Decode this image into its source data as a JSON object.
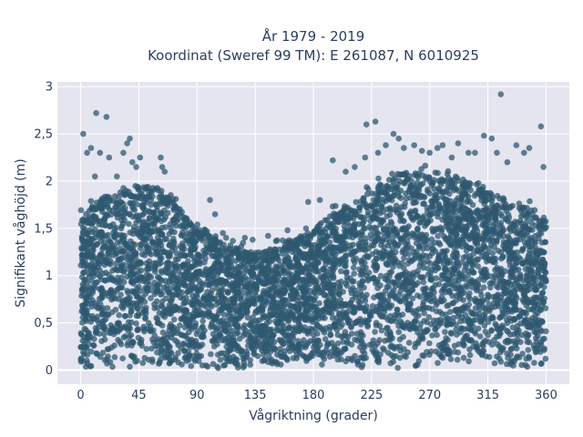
{
  "chart_data": {
    "type": "scatter",
    "title_line1": "År 1979 - 2019",
    "title_line2": "Koordinat (Sweref 99 TM): E 261087, N 6010925",
    "xlabel": "Vågriktning (grader)",
    "ylabel": "Signifikant våghöjd (m)",
    "xlim": [
      -18,
      378
    ],
    "ylim": [
      -0.15,
      3.05
    ],
    "x_ticks": [
      0,
      45,
      90,
      135,
      180,
      225,
      270,
      315,
      360
    ],
    "x_tick_labels": [
      "0",
      "45",
      "90",
      "135",
      "180",
      "225",
      "270",
      "315",
      "360"
    ],
    "y_ticks": [
      0,
      0.5,
      1,
      1.5,
      2,
      2.5,
      3
    ],
    "y_tick_labels": [
      "0",
      "0,5",
      "1",
      "1,5",
      "2",
      "2,5",
      "3"
    ],
    "grid": true,
    "colors": {
      "plot_bg": "#e5e5f0",
      "grid": "#ffffff",
      "marker": "#2e5870"
    },
    "envelope": [
      [
        0,
        1.6
      ],
      [
        10,
        1.75
      ],
      [
        20,
        1.85
      ],
      [
        30,
        1.9
      ],
      [
        40,
        1.95
      ],
      [
        50,
        1.95
      ],
      [
        60,
        1.95
      ],
      [
        70,
        1.85
      ],
      [
        80,
        1.65
      ],
      [
        90,
        1.55
      ],
      [
        100,
        1.45
      ],
      [
        110,
        1.35
      ],
      [
        120,
        1.3
      ],
      [
        130,
        1.25
      ],
      [
        140,
        1.25
      ],
      [
        150,
        1.3
      ],
      [
        160,
        1.35
      ],
      [
        170,
        1.4
      ],
      [
        180,
        1.5
      ],
      [
        190,
        1.6
      ],
      [
        200,
        1.7
      ],
      [
        210,
        1.8
      ],
      [
        220,
        1.9
      ],
      [
        230,
        1.95
      ],
      [
        240,
        2.05
      ],
      [
        250,
        2.1
      ],
      [
        260,
        2.1
      ],
      [
        270,
        2.1
      ],
      [
        280,
        2.1
      ],
      [
        290,
        2.05
      ],
      [
        300,
        2.0
      ],
      [
        310,
        1.95
      ],
      [
        320,
        1.9
      ],
      [
        330,
        1.8
      ],
      [
        340,
        1.75
      ],
      [
        350,
        1.7
      ],
      [
        360,
        1.65
      ]
    ],
    "outliers": [
      [
        2,
        2.5
      ],
      [
        5,
        2.3
      ],
      [
        8,
        2.35
      ],
      [
        11,
        2.05
      ],
      [
        12,
        2.72
      ],
      [
        15,
        2.3
      ],
      [
        20,
        2.68
      ],
      [
        22,
        2.25
      ],
      [
        28,
        2.05
      ],
      [
        33,
        2.3
      ],
      [
        36,
        2.4
      ],
      [
        38,
        2.45
      ],
      [
        40,
        2.2
      ],
      [
        43,
        2.15
      ],
      [
        46,
        2.25
      ],
      [
        62,
        2.25
      ],
      [
        63,
        2.15
      ],
      [
        65,
        2.1
      ],
      [
        100,
        1.8
      ],
      [
        104,
        1.65
      ],
      [
        110,
        1.45
      ],
      [
        127,
        1.4
      ],
      [
        133,
        1.38
      ],
      [
        145,
        1.42
      ],
      [
        160,
        1.48
      ],
      [
        176,
        1.78
      ],
      [
        185,
        1.8
      ],
      [
        195,
        2.22
      ],
      [
        205,
        2.1
      ],
      [
        212,
        2.15
      ],
      [
        220,
        2.25
      ],
      [
        221,
        2.6
      ],
      [
        228,
        2.63
      ],
      [
        230,
        2.3
      ],
      [
        236,
        2.38
      ],
      [
        242,
        2.5
      ],
      [
        246,
        2.45
      ],
      [
        250,
        2.35
      ],
      [
        258,
        2.38
      ],
      [
        264,
        2.32
      ],
      [
        270,
        2.3
      ],
      [
        276,
        2.35
      ],
      [
        280,
        2.38
      ],
      [
        287,
        2.25
      ],
      [
        292,
        2.4
      ],
      [
        300,
        2.3
      ],
      [
        305,
        2.3
      ],
      [
        312,
        2.48
      ],
      [
        318,
        2.45
      ],
      [
        322,
        2.3
      ],
      [
        325,
        2.92
      ],
      [
        330,
        2.2
      ],
      [
        337,
        2.38
      ],
      [
        343,
        2.3
      ],
      [
        347,
        2.35
      ],
      [
        356,
        2.58
      ],
      [
        358,
        2.15
      ]
    ]
  }
}
